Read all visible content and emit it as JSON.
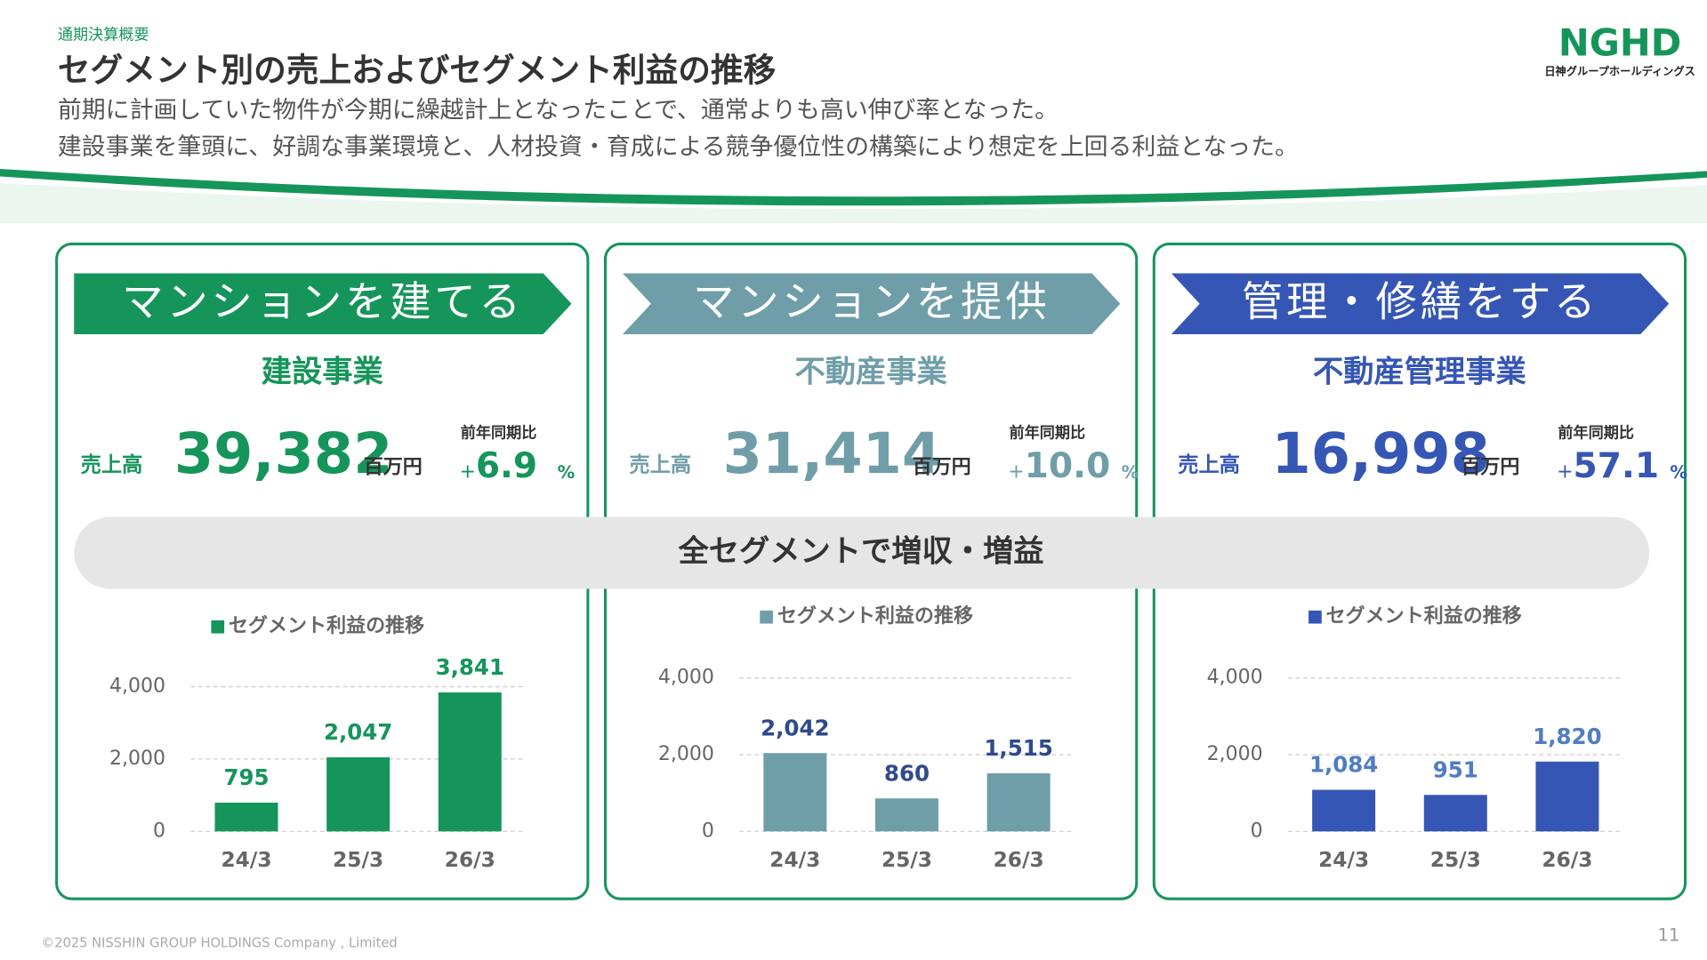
{
  "header": {
    "section": "通期決算概要",
    "title": "セグメント別の売上およびセグメント利益の推移",
    "lines": [
      "前期に計画していた物件が今期に繰越計上となったことで、通常よりも高い伸び率となった。",
      "建設事業を筆頭に、好調な事業環境と、人材投資・育成による競争優位性の構築により想定を上回る利益となった。"
    ]
  },
  "logo": {
    "mark": "NGHD",
    "name": "日神グループホールディングス"
  },
  "panels": [
    {
      "banner": "マンションを建てる",
      "segment": "建設事業",
      "sales_label": "売上高",
      "sales": "39,382",
      "unit": "百万円",
      "yoy_label": "前年同期比",
      "yoy_sign": "+",
      "yoy": "6.9",
      "yoy_unit": "%"
    },
    {
      "banner": "マンションを提供",
      "segment": "不動産事業",
      "sales_label": "売上高",
      "sales": "31,414",
      "unit": "百万円",
      "yoy_label": "前年同期比",
      "yoy_sign": "+",
      "yoy": "10.0",
      "yoy_unit": "%"
    },
    {
      "banner": "管理・修繕をする",
      "segment": "不動産管理事業",
      "sales_label": "売上高",
      "sales": "16,998",
      "unit": "百万円",
      "yoy_label": "前年同期比",
      "yoy_sign": "+",
      "yoy": "57.1",
      "yoy_unit": "%"
    }
  ],
  "summary": "全セグメントで増収・増益",
  "chart_data": [
    {
      "type": "bar",
      "title": "セグメント利益の推移",
      "categories": [
        "24/3",
        "25/3",
        "26/3"
      ],
      "values": [
        795,
        2047,
        3841
      ],
      "value_labels": [
        "795",
        "2,047",
        "3,841"
      ],
      "color": "#16955b",
      "label_color": "#16955b",
      "ylim": [
        0,
        4000
      ],
      "yticks": [
        0,
        {
          "value": 2000,
          "label": "2,000"
        },
        {
          "value": 4000,
          "label": "4,000"
        }
      ],
      "grid": true
    },
    {
      "type": "bar",
      "title": "セグメント利益の推移",
      "categories": [
        "24/3",
        "25/3",
        "26/3"
      ],
      "values": [
        2042,
        860,
        1515
      ],
      "value_labels": [
        "2,042",
        "860",
        "1,515"
      ],
      "color": "#6f9ea8",
      "label_color": "#2f4a8c",
      "ylim": [
        0,
        4000
      ],
      "yticks": [
        0,
        {
          "value": 2000,
          "label": "2,000"
        },
        {
          "value": 4000,
          "label": "4,000"
        }
      ],
      "grid": true
    },
    {
      "type": "bar",
      "title": "セグメント利益の推移",
      "categories": [
        "24/3",
        "25/3",
        "26/3"
      ],
      "values": [
        1084,
        951,
        1820
      ],
      "value_labels": [
        "1,084",
        "951",
        "1,820"
      ],
      "color": "#3556b4",
      "label_color": "#4f7cc4",
      "ylim": [
        0,
        4000
      ],
      "yticks": [
        0,
        {
          "value": 2000,
          "label": "2,000"
        },
        {
          "value": 4000,
          "label": "4,000"
        }
      ],
      "grid": true
    }
  ],
  "footer": {
    "copyright": "©2025 NISSHIN GROUP HOLDINGS Company , Limited",
    "page": "11"
  }
}
